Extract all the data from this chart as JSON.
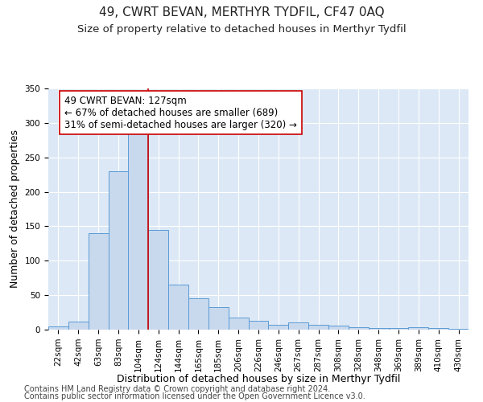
{
  "title": "49, CWRT BEVAN, MERTHYR TYDFIL, CF47 0AQ",
  "subtitle": "Size of property relative to detached houses in Merthyr Tydfil",
  "xlabel": "Distribution of detached houses by size in Merthyr Tydfil",
  "ylabel": "Number of detached properties",
  "footnote1": "Contains HM Land Registry data © Crown copyright and database right 2024.",
  "footnote2": "Contains public sector information licensed under the Open Government Licence v3.0.",
  "bin_labels": [
    "22sqm",
    "42sqm",
    "63sqm",
    "83sqm",
    "104sqm",
    "124sqm",
    "144sqm",
    "165sqm",
    "185sqm",
    "206sqm",
    "226sqm",
    "246sqm",
    "267sqm",
    "287sqm",
    "308sqm",
    "328sqm",
    "348sqm",
    "369sqm",
    "389sqm",
    "410sqm",
    "430sqm"
  ],
  "bar_values": [
    5,
    12,
    140,
    230,
    285,
    145,
    65,
    45,
    33,
    17,
    13,
    7,
    10,
    7,
    6,
    4,
    2,
    2,
    4,
    2,
    1
  ],
  "bar_color": "#c8d9ee",
  "bar_edge_color": "#5b9bd5",
  "ylim": [
    0,
    350
  ],
  "yticks": [
    0,
    50,
    100,
    150,
    200,
    250,
    300,
    350
  ],
  "property_line_color": "#cc0000",
  "annotation_text": "49 CWRT BEVAN: 127sqm\n← 67% of detached houses are smaller (689)\n31% of semi-detached houses are larger (320) →",
  "annotation_box_facecolor": "#ffffff",
  "annotation_box_edgecolor": "#cc0000",
  "plot_bg_color": "#dce8f5",
  "fig_bg_color": "#ffffff",
  "grid_color": "#ffffff",
  "title_fontsize": 11,
  "subtitle_fontsize": 9.5,
  "axis_label_fontsize": 9,
  "tick_fontsize": 7.5,
  "annotation_fontsize": 8.5,
  "footnote_fontsize": 7
}
